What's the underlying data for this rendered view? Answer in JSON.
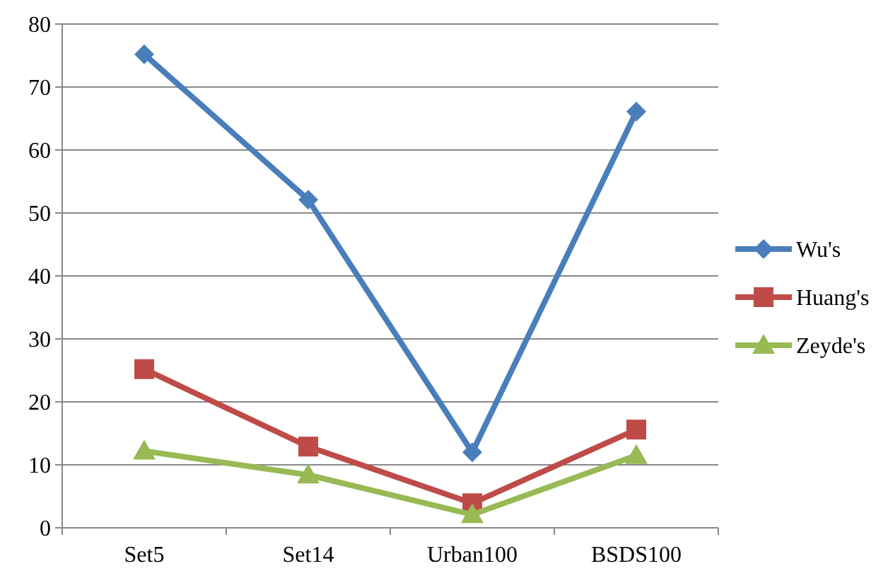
{
  "chart_data": {
    "type": "line",
    "categories": [
      "Set5",
      "Set14",
      "Urban100",
      "BSDS100"
    ],
    "series": [
      {
        "name": "Wu's",
        "color": "#4a7ebb",
        "values": [
          75.2,
          52.1,
          12.0,
          66.1
        ],
        "marker": "diamond"
      },
      {
        "name": "Huang's",
        "color": "#be4b48",
        "values": [
          25.2,
          12.9,
          3.9,
          15.6
        ],
        "marker": "square"
      },
      {
        "name": "Zeyde's",
        "color": "#98b954",
        "values": [
          12.2,
          8.4,
          2.1,
          11.5
        ],
        "marker": "triangle"
      }
    ],
    "ylim": [
      0,
      80
    ],
    "yticks": [
      0,
      10,
      20,
      30,
      40,
      50,
      60,
      70,
      80
    ],
    "grid": "y",
    "legend": "right"
  }
}
